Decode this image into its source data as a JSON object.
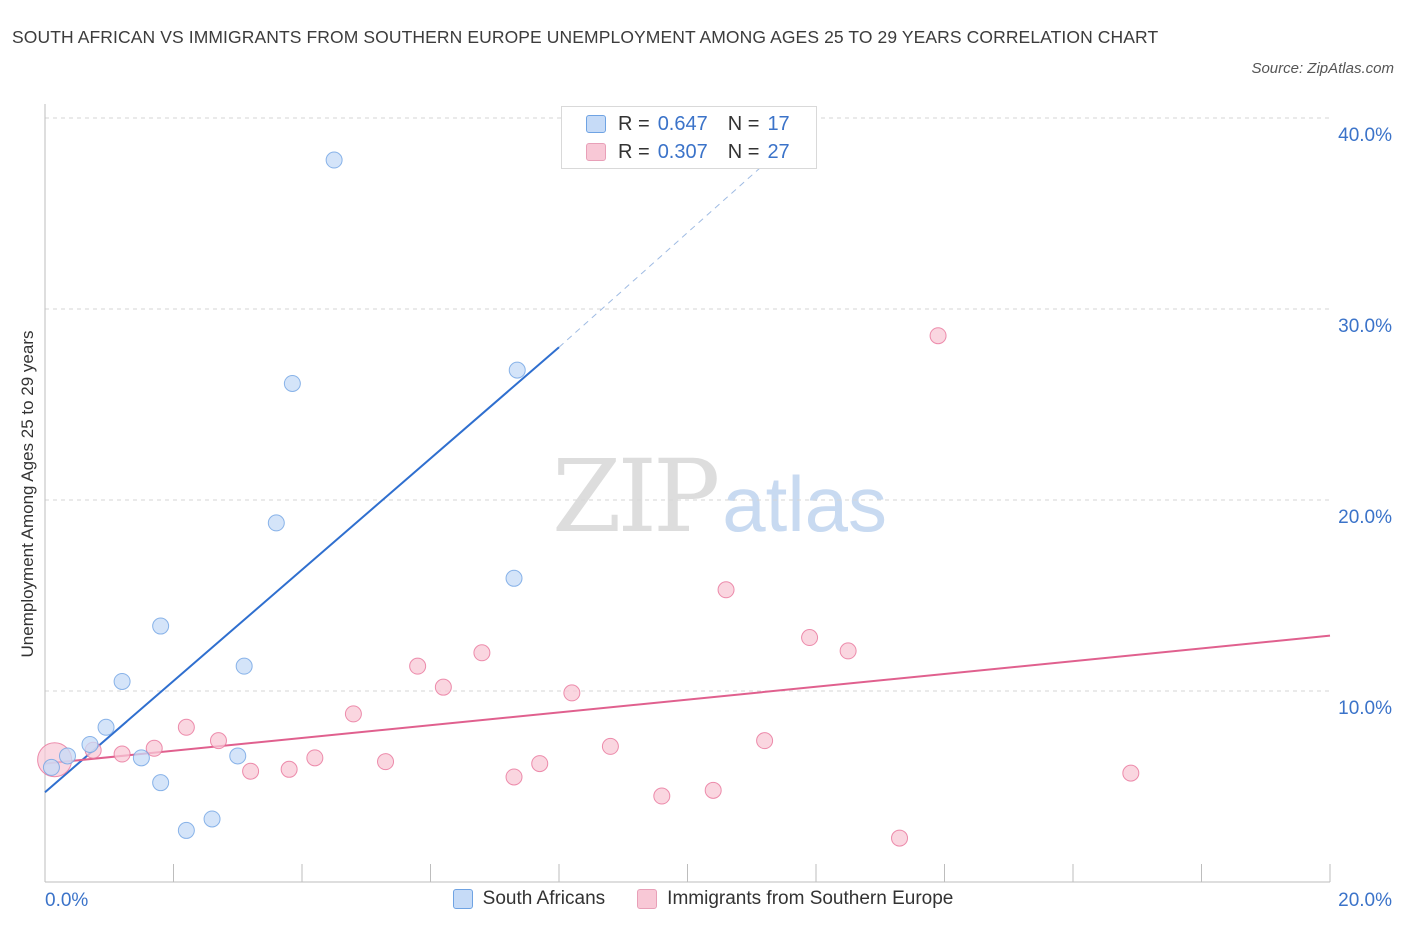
{
  "title": "SOUTH AFRICAN VS IMMIGRANTS FROM SOUTHERN EUROPE UNEMPLOYMENT AMONG AGES 25 TO 29 YEARS CORRELATION CHART",
  "source": "Source: ZipAtlas.com",
  "watermark": {
    "zip": "ZIP",
    "atlas": "atlas"
  },
  "legend_top": [
    {
      "r_label": "R =",
      "r_value": "0.647",
      "n_label": "N =",
      "n_value": "17"
    },
    {
      "r_label": "R =",
      "r_value": "0.307",
      "n_label": "N =",
      "n_value": "27"
    }
  ],
  "chart_data": {
    "type": "scatter",
    "title": "SOUTH AFRICAN VS IMMIGRANTS FROM SOUTHERN EUROPE UNEMPLOYMENT AMONG AGES 25 TO 29 YEARS CORRELATION CHART",
    "xlabel": "",
    "ylabel": "Unemployment Among Ages 25 to 29 years",
    "xlim": [
      0,
      20
    ],
    "ylim": [
      0,
      40
    ],
    "x_tick_labels": [
      "0.0%",
      "20.0%"
    ],
    "y_tick_labels": [
      "10.0%",
      "20.0%",
      "30.0%",
      "40.0%"
    ],
    "y_ticks": [
      10,
      20,
      30,
      40
    ],
    "legend_position": "bottom",
    "series": [
      {
        "name": "South Africans",
        "color": "#6fa3e3",
        "fill": "#c6dbf7",
        "r": 0.647,
        "n": 17,
        "points": [
          [
            0.1,
            6.0
          ],
          [
            0.35,
            6.6
          ],
          [
            0.7,
            7.2
          ],
          [
            0.95,
            8.1
          ],
          [
            1.2,
            10.5
          ],
          [
            1.5,
            6.5
          ],
          [
            1.8,
            5.2
          ],
          [
            1.8,
            13.4
          ],
          [
            2.2,
            2.7
          ],
          [
            2.6,
            3.3
          ],
          [
            3.0,
            6.6
          ],
          [
            3.1,
            11.3
          ],
          [
            3.6,
            18.8
          ],
          [
            3.85,
            26.1
          ],
          [
            4.5,
            37.8
          ],
          [
            7.3,
            15.9
          ],
          [
            7.35,
            26.8
          ]
        ],
        "trend": {
          "x0": 0,
          "y0": 4.7,
          "x1": 8.0,
          "y1": 28.0,
          "dash_x1": 12.0,
          "dash_y1": 40.0
        }
      },
      {
        "name": "Immigrants from Southern Europe",
        "color": "#e8739a",
        "fill": "#f8c8d6",
        "r": 0.307,
        "n": 27,
        "points": [
          [
            0.15,
            6.4
          ],
          [
            0.75,
            6.9
          ],
          [
            1.2,
            6.7
          ],
          [
            1.7,
            7.0
          ],
          [
            2.2,
            8.1
          ],
          [
            2.7,
            7.4
          ],
          [
            3.2,
            5.8
          ],
          [
            3.8,
            5.9
          ],
          [
            4.2,
            6.5
          ],
          [
            4.8,
            8.8
          ],
          [
            5.3,
            6.3
          ],
          [
            5.8,
            11.3
          ],
          [
            6.2,
            10.2
          ],
          [
            6.8,
            12.0
          ],
          [
            7.3,
            5.5
          ],
          [
            7.7,
            6.2
          ],
          [
            8.2,
            9.9
          ],
          [
            8.8,
            7.1
          ],
          [
            9.6,
            4.5
          ],
          [
            10.4,
            4.8
          ],
          [
            10.6,
            15.3
          ],
          [
            11.2,
            7.4
          ],
          [
            11.9,
            12.8
          ],
          [
            12.5,
            12.1
          ],
          [
            13.3,
            2.3
          ],
          [
            13.9,
            28.6
          ],
          [
            16.9,
            5.7
          ]
        ],
        "trend": {
          "x0": 0,
          "y0": 6.2,
          "x1": 20.0,
          "y1": 12.9
        }
      }
    ]
  },
  "legend_bottom": [
    {
      "label": "South Africans",
      "color": "#c6dbf7",
      "border": "#6fa3e3"
    },
    {
      "label": "Immigrants from Southern Europe",
      "color": "#f8c8d6",
      "border": "#e8a0b8"
    }
  ]
}
